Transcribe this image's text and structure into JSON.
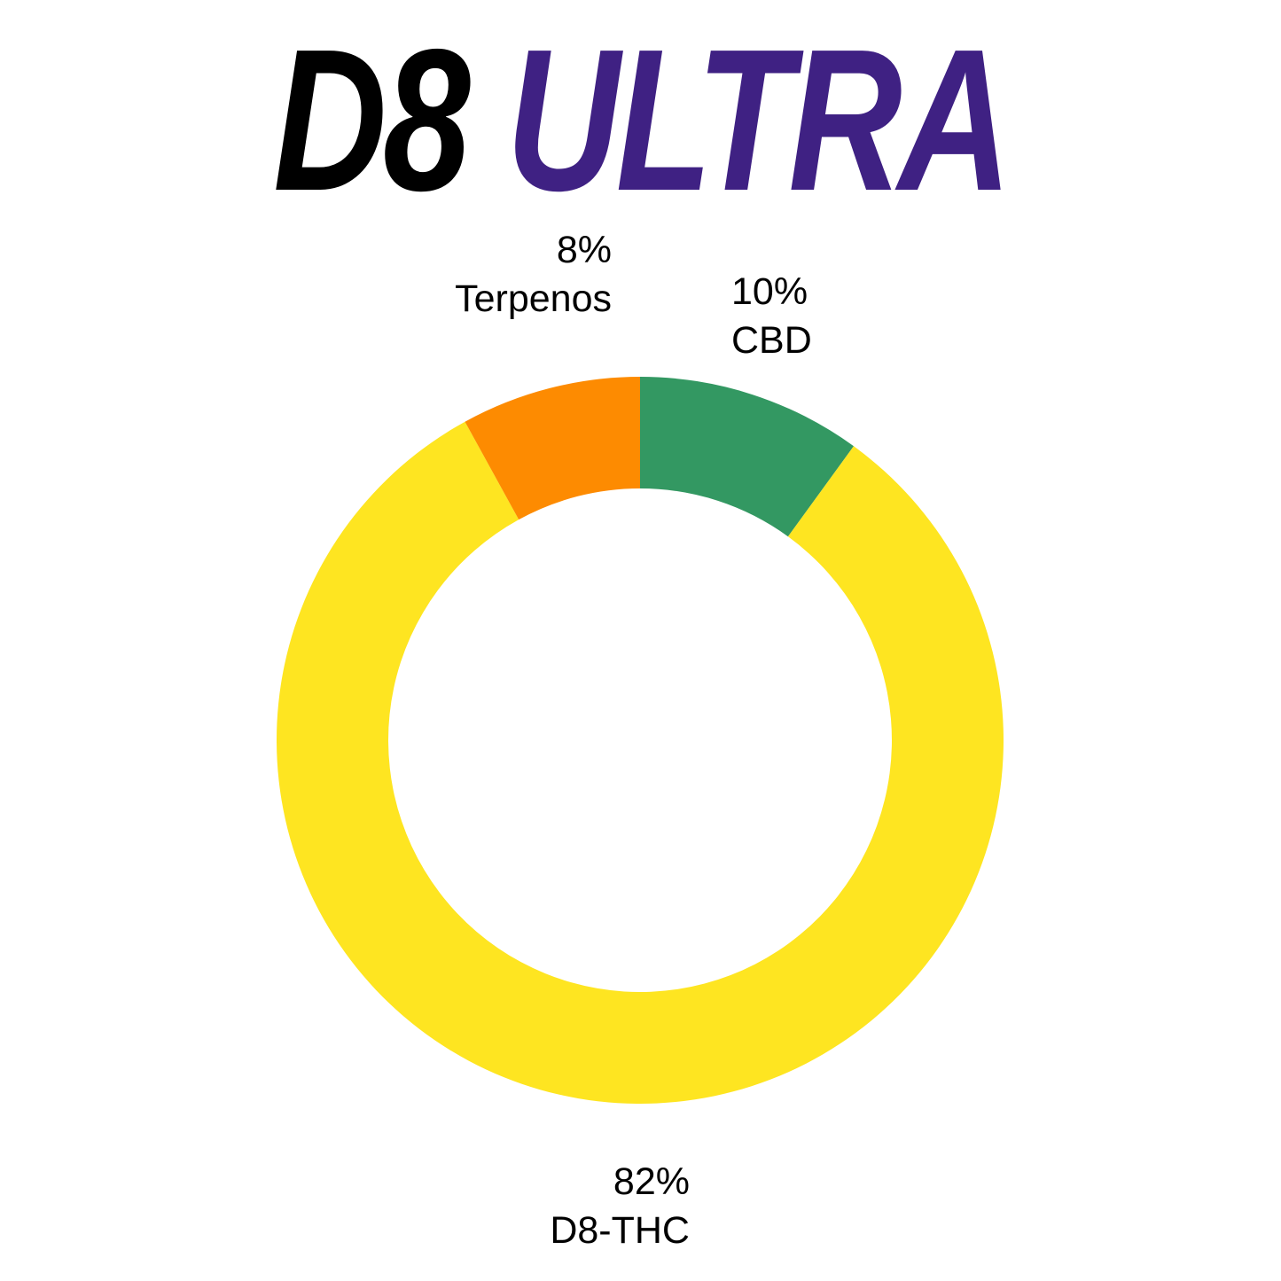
{
  "title": {
    "part1": "D8",
    "part2": "ULTRA",
    "part1_color": "#000000",
    "part2_color": "#3f2183"
  },
  "chart_data": {
    "type": "pie",
    "donut": true,
    "start": "top",
    "direction": "clockwise",
    "slices": [
      {
        "name": "CBD",
        "value": 10,
        "value_label": "10%",
        "color": "#339862"
      },
      {
        "name": "D8-THC",
        "value": 82,
        "value_label": "82%",
        "color": "#fee521"
      },
      {
        "name": "Terpenos",
        "value": 8,
        "value_label": "8%",
        "color": "#fd8b01"
      }
    ]
  }
}
